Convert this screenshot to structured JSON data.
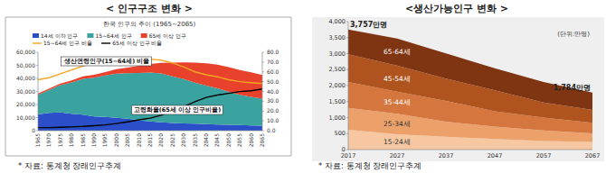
{
  "chart_data": [
    {
      "type": "area",
      "title": "< 인구구조 변화 >",
      "subtitle": "한국 인구의 추이 (1965~2065)",
      "source": "* 자료: 통계청 장래인구추계",
      "categories": [
        "1965",
        "1970",
        "1975",
        "1980",
        "1985",
        "1990",
        "1995",
        "2000",
        "2005",
        "2010",
        "2015",
        "2020",
        "2025",
        "2030",
        "2035",
        "2040",
        "2045",
        "2050",
        "2055",
        "2060",
        "2065"
      ],
      "stacked": true,
      "legend": "top",
      "grid": false,
      "ylim": [
        0,
        60000
      ],
      "yticks": [
        0,
        {
          "value": 10000,
          "label": "10,000"
        },
        {
          "value": 20000,
          "label": "20,000"
        },
        {
          "value": 30000,
          "label": "30,000"
        },
        {
          "value": 40000,
          "label": "40,000"
        },
        {
          "value": 50000,
          "label": "50,000"
        },
        {
          "value": 60000,
          "label": "60,000"
        }
      ],
      "y2lim": [
        0,
        80
      ],
      "y2ticks": [
        {
          "value": 0,
          "label": "0.0"
        },
        {
          "value": 10,
          "label": "10.0"
        },
        {
          "value": 20,
          "label": "20.0"
        },
        {
          "value": 30,
          "label": "30.0"
        },
        {
          "value": 40,
          "label": "40.0"
        },
        {
          "value": 50,
          "label": "50.0"
        },
        {
          "value": 60,
          "label": "60.0"
        },
        {
          "value": 70,
          "label": "70.0"
        },
        {
          "value": 80,
          "label": "80.0"
        }
      ],
      "series": [
        {
          "name": "14세 이하 인구",
          "color": "#2a4fc8",
          "values": [
            12500,
            13700,
            13900,
            12900,
            12200,
            10900,
            10500,
            9900,
            9200,
            7900,
            7000,
            6400,
            5800,
            5600,
            5300,
            5000,
            4700,
            4500,
            4300,
            4000,
            3800
          ]
        },
        {
          "name": "15~64세 인구",
          "color": "#3aa3a0",
          "values": [
            15000,
            17500,
            21000,
            24000,
            27500,
            29700,
            31700,
            33700,
            34700,
            36200,
            37400,
            37400,
            35800,
            33900,
            31500,
            29400,
            27700,
            25400,
            23100,
            21900,
            20600
          ]
        },
        {
          "name": "65세 이상 인구",
          "color": "#e8412c",
          "values": [
            900,
            1000,
            1200,
            1500,
            1800,
            2200,
            2700,
            3400,
            4400,
            5500,
            6600,
            8100,
            10500,
            12700,
            15200,
            17200,
            18200,
            18800,
            19000,
            18800,
            18200
          ]
        },
        {
          "name": "15~64세 인구 비율",
          "type": "line",
          "axis": "y2",
          "color": "#f5a623",
          "values": [
            52,
            54,
            58,
            62,
            66,
            69,
            71,
            72,
            72,
            73,
            73,
            72,
            69,
            65,
            60,
            57,
            55,
            52,
            50,
            49,
            48
          ]
        },
        {
          "name": "65세 이상 인구 비율",
          "type": "line",
          "axis": "y2",
          "color": "#000000",
          "values": [
            3.1,
            3.1,
            3.5,
            3.8,
            4.3,
            5.1,
            5.9,
            7.2,
            9.0,
            11.0,
            12.8,
            15.7,
            20.3,
            24.5,
            29.5,
            33.9,
            36.3,
            38.1,
            39.9,
            40.7,
            42.5
          ]
        }
      ],
      "annotations": [
        "생산연령인구(15~64세) 비율",
        "고령화율(65세 이상 인구비율)"
      ]
    },
    {
      "type": "area",
      "title": "<생산가능인구 변화 >",
      "subtitle": "(단위:만명)",
      "source": "* 자료: 통계청 장래인구추계",
      "categories": [
        "2017",
        "2027",
        "2037",
        "2047",
        "2057",
        "2067"
      ],
      "stacked": true,
      "legend": "inside",
      "grid": false,
      "ylim": [
        0,
        4000
      ],
      "yticks": [
        0,
        500,
        {
          "value": 1000,
          "label": "1,000"
        },
        {
          "value": 1500,
          "label": "1,500"
        },
        {
          "value": 2000,
          "label": "2,000"
        },
        {
          "value": 2500,
          "label": "2,500"
        },
        {
          "value": 3000,
          "label": "3,000"
        },
        {
          "value": 3500,
          "label": "3,500"
        },
        {
          "value": 4000,
          "label": "4,000"
        }
      ],
      "series": [
        {
          "name": "15-24세",
          "color": "#f6c7a1",
          "values": [
            620,
            480,
            400,
            330,
            270,
            240
          ]
        },
        {
          "name": "25-34세",
          "color": "#eca16b",
          "values": [
            680,
            640,
            470,
            390,
            330,
            270
          ]
        },
        {
          "name": "35-44세",
          "color": "#d5763e",
          "values": [
            810,
            690,
            650,
            480,
            400,
            330
          ]
        },
        {
          "name": "45-54세",
          "color": "#b0541f",
          "values": [
            870,
            820,
            700,
            650,
            470,
            400
          ]
        },
        {
          "name": "65-64세",
          "color": "#7f3412",
          "values": [
            777,
            840,
            790,
            690,
            640,
            544
          ]
        }
      ],
      "annotations": [
        {
          "text": "3,757만명",
          "category": "2017",
          "value": 3757
        },
        {
          "text": "1,784만명",
          "category": "2067",
          "value": 1784
        }
      ]
    }
  ]
}
